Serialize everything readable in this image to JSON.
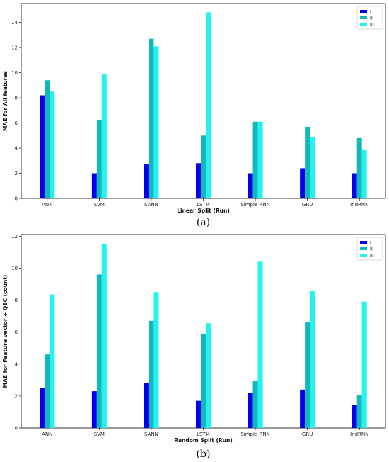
{
  "colors": {
    "I": "#0000ee",
    "II": "#12b8b8",
    "III": "#22f2f2"
  },
  "chart_data": [
    {
      "type": "bar",
      "categories": [
        "ANN",
        "SVM",
        "SANN",
        "LSTM",
        "Simple RNN",
        "GRU",
        "IndRNN"
      ],
      "series": [
        {
          "name": "I",
          "values": [
            8.2,
            2.0,
            2.7,
            2.8,
            2.0,
            2.4,
            2.0
          ]
        },
        {
          "name": "II",
          "values": [
            9.4,
            6.2,
            12.7,
            5.0,
            6.1,
            5.7,
            4.8
          ]
        },
        {
          "name": "III",
          "values": [
            8.5,
            9.9,
            12.1,
            14.8,
            6.1,
            4.9,
            3.9
          ]
        }
      ],
      "xlabel": "Linear Split (Run)",
      "ylabel": "MAE for All features",
      "ylim": [
        0,
        15.5
      ],
      "yticks": [
        0,
        2,
        4,
        6,
        8,
        10,
        12,
        14
      ],
      "legend": "top-right",
      "caption": "(a)"
    },
    {
      "type": "bar",
      "categories": [
        "ANN",
        "SVM",
        "SANN",
        "LSTM",
        "Simple RNN",
        "GRU",
        "IndRNN"
      ],
      "series": [
        {
          "name": "I",
          "values": [
            2.5,
            2.3,
            2.8,
            1.7,
            2.2,
            2.4,
            1.45
          ]
        },
        {
          "name": "II",
          "values": [
            4.6,
            9.6,
            6.7,
            5.9,
            2.95,
            6.6,
            2.05
          ]
        },
        {
          "name": "III",
          "values": [
            8.35,
            11.5,
            8.5,
            6.55,
            10.4,
            8.6,
            7.9
          ]
        }
      ],
      "xlabel": "Random Split (Run)",
      "ylabel": "MAE for Feature vector + QEC  (count)",
      "ylim": [
        0,
        12.1
      ],
      "yticks": [
        0,
        2,
        4,
        6,
        8,
        10,
        12
      ],
      "legend": "top-right",
      "caption": "(b)"
    }
  ]
}
